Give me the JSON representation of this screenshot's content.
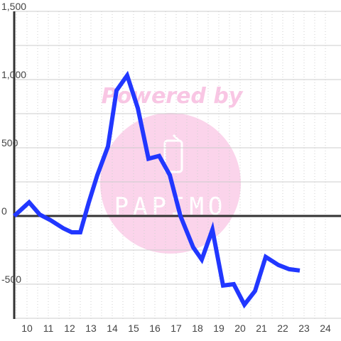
{
  "chart_data": {
    "type": "line",
    "title": "",
    "xlabel": "",
    "ylabel": "",
    "xlim": [
      9.4,
      24.3
    ],
    "ylim": [
      -760,
      1500
    ],
    "x_ticks": [
      10,
      11,
      12,
      13,
      14,
      15,
      16,
      17,
      18,
      19,
      20,
      21,
      22,
      23,
      24
    ],
    "y_ticks": [
      1500,
      1000,
      500,
      0,
      -500
    ],
    "y_tick_labels": [
      "1,500",
      "1,000",
      "500",
      "0",
      "-500"
    ],
    "x_tick_labels": [
      "10",
      "11",
      "12",
      "13",
      "14",
      "15",
      "16",
      "17",
      "18",
      "19",
      "20",
      "21",
      "22",
      "23",
      "24"
    ],
    "grid": true,
    "series": [
      {
        "color": "#2137ff",
        "x": [
          9.4,
          10.1,
          10.6,
          11.1,
          11.7,
          12.1,
          12.5,
          12.9,
          13.3,
          13.8,
          14.2,
          14.7,
          15.2,
          15.7,
          16.2,
          16.7,
          17.2,
          17.8,
          18.2,
          18.7,
          19.2,
          19.7,
          20.2,
          20.7,
          21.2,
          21.8,
          22.3,
          22.8
        ],
        "y": [
          0,
          100,
          10,
          -30,
          -90,
          -120,
          -120,
          100,
          300,
          510,
          920,
          1030,
          790,
          420,
          440,
          300,
          0,
          -230,
          -320,
          -100,
          -510,
          -500,
          -650,
          -550,
          -300,
          -360,
          -390,
          -400
        ]
      }
    ]
  },
  "watermark": {
    "text": "Powered by",
    "logo_text": "PAPIMO",
    "color": "#f9c6e4"
  },
  "colors": {
    "zero_line": "#333333",
    "grid_major": "#cccccc",
    "grid_minor": "#cfcfcf",
    "axis": "#333333"
  }
}
